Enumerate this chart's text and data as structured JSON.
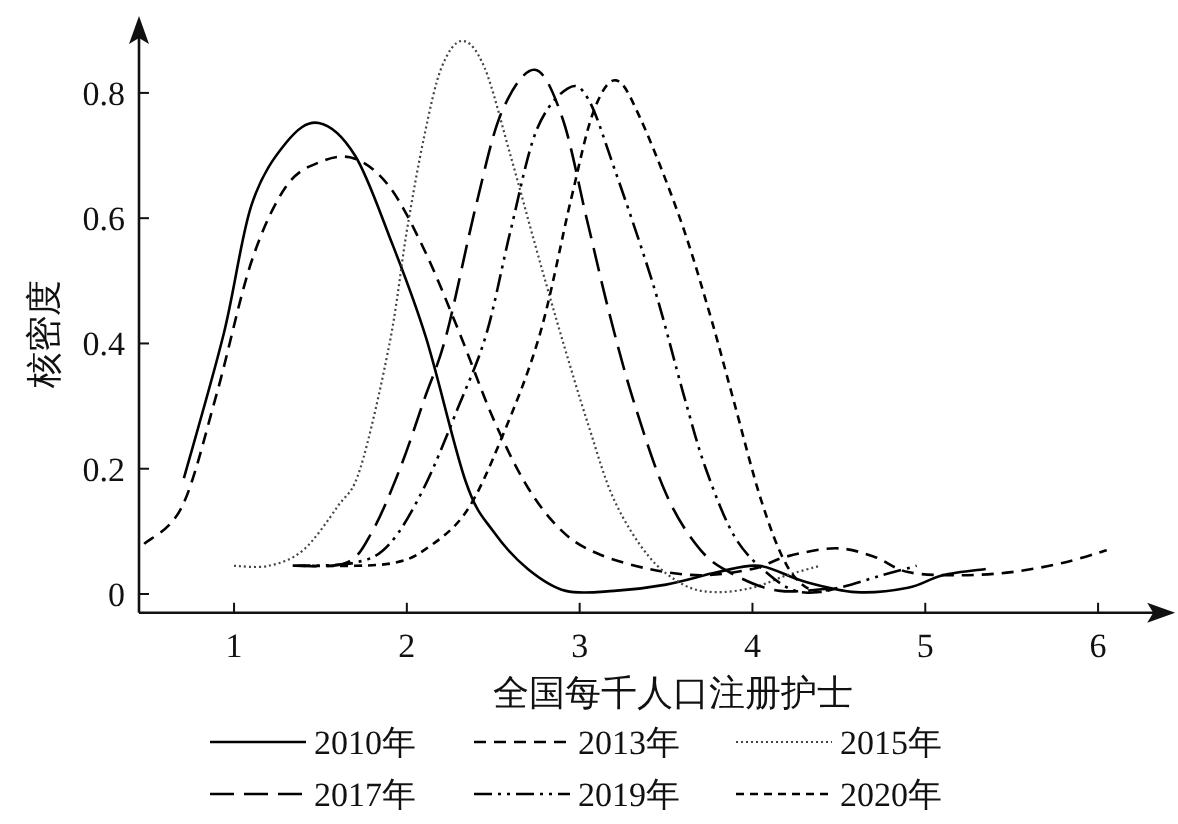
{
  "chart_data": {
    "type": "line",
    "xlabel": "全国每千人口注册护士",
    "ylabel": "核密度",
    "xlim": [
      0.45,
      6.4
    ],
    "ylim": [
      -0.03,
      0.91
    ],
    "xticks": [
      1,
      2,
      3,
      4,
      5,
      6
    ],
    "yticks": [
      0,
      0.2,
      0.4,
      0.6,
      0.8
    ],
    "grid": false,
    "legend": "bottom",
    "marker": "none",
    "series": [
      {
        "name": "2010年",
        "color": "#000000",
        "line_style": "solid",
        "x": [
          0.71,
          0.94,
          1.1,
          1.3,
          1.49,
          1.7,
          1.9,
          2.11,
          2.34,
          2.5,
          2.7,
          2.92,
          3.2,
          3.5,
          3.8,
          4.04,
          4.3,
          4.6,
          4.9,
          5.1,
          5.35
        ],
        "values": [
          0.185,
          0.415,
          0.62,
          0.72,
          0.752,
          0.7,
          0.57,
          0.41,
          0.18,
          0.1,
          0.04,
          0.005,
          0.005,
          0.015,
          0.035,
          0.045,
          0.02,
          0.003,
          0.01,
          0.03,
          0.04
        ]
      },
      {
        "name": "2013年",
        "color": "#000000",
        "line_style": "dashed",
        "x": [
          0.48,
          0.7,
          0.9,
          1.1,
          1.3,
          1.5,
          1.7,
          1.9,
          2.1,
          2.3,
          2.5,
          2.7,
          2.9,
          3.1,
          3.4,
          3.7,
          4.0,
          4.2,
          4.48,
          4.7,
          4.9,
          5.2,
          5.5,
          5.8,
          6.05
        ],
        "values": [
          0.08,
          0.14,
          0.32,
          0.53,
          0.65,
          0.69,
          0.695,
          0.65,
          0.55,
          0.42,
          0.28,
          0.17,
          0.1,
          0.065,
          0.04,
          0.03,
          0.04,
          0.06,
          0.073,
          0.06,
          0.035,
          0.03,
          0.035,
          0.05,
          0.07
        ]
      },
      {
        "name": "2015年",
        "color": "#444444",
        "line_style": "dotted",
        "x": [
          1.0,
          1.2,
          1.4,
          1.6,
          1.73,
          1.9,
          2.0,
          2.1,
          2.2,
          2.32,
          2.45,
          2.6,
          2.75,
          2.89,
          3.05,
          3.2,
          3.4,
          3.6,
          3.78,
          4.0,
          4.2,
          4.39
        ],
        "values": [
          0.045,
          0.045,
          0.07,
          0.14,
          0.2,
          0.4,
          0.58,
          0.73,
          0.84,
          0.883,
          0.84,
          0.7,
          0.55,
          0.415,
          0.27,
          0.15,
          0.06,
          0.015,
          0.003,
          0.01,
          0.03,
          0.045
        ]
      },
      {
        "name": "2017年",
        "color": "#000000",
        "line_style": "dashed",
        "x": [
          1.34,
          1.65,
          1.8,
          1.96,
          2.1,
          2.23,
          2.4,
          2.55,
          2.74,
          2.9,
          3.04,
          3.17,
          3.31,
          3.5,
          3.7,
          3.9,
          4.16,
          4.5
        ],
        "values": [
          0.045,
          0.05,
          0.1,
          0.2,
          0.31,
          0.415,
          0.62,
          0.77,
          0.837,
          0.76,
          0.6,
          0.45,
          0.31,
          0.16,
          0.07,
          0.03,
          0.005,
          0.01
        ]
      },
      {
        "name": "2019年",
        "color": "#000000",
        "line_style": "dashed",
        "x": [
          1.34,
          1.7,
          1.9,
          2.1,
          2.3,
          2.46,
          2.6,
          2.75,
          2.93,
          3.05,
          3.2,
          3.43,
          3.6,
          3.73,
          3.9,
          4.1,
          4.28,
          4.5,
          4.75,
          4.95
        ],
        "values": [
          0.045,
          0.05,
          0.08,
          0.17,
          0.3,
          0.415,
          0.58,
          0.74,
          0.807,
          0.79,
          0.68,
          0.49,
          0.32,
          0.2,
          0.09,
          0.03,
          0.003,
          0.01,
          0.03,
          0.045
        ]
      },
      {
        "name": "2020年",
        "color": "#000000",
        "line_style": "dashed",
        "x": [
          1.37,
          1.7,
          1.93,
          2.1,
          2.34,
          2.55,
          2.77,
          2.95,
          3.08,
          3.21,
          3.35,
          3.58,
          3.75,
          3.89,
          4.05,
          4.2,
          4.35,
          4.5
        ],
        "values": [
          0.045,
          0.045,
          0.05,
          0.07,
          0.13,
          0.25,
          0.415,
          0.63,
          0.77,
          0.82,
          0.76,
          0.6,
          0.45,
          0.31,
          0.15,
          0.045,
          0.005,
          0.01
        ]
      }
    ]
  }
}
